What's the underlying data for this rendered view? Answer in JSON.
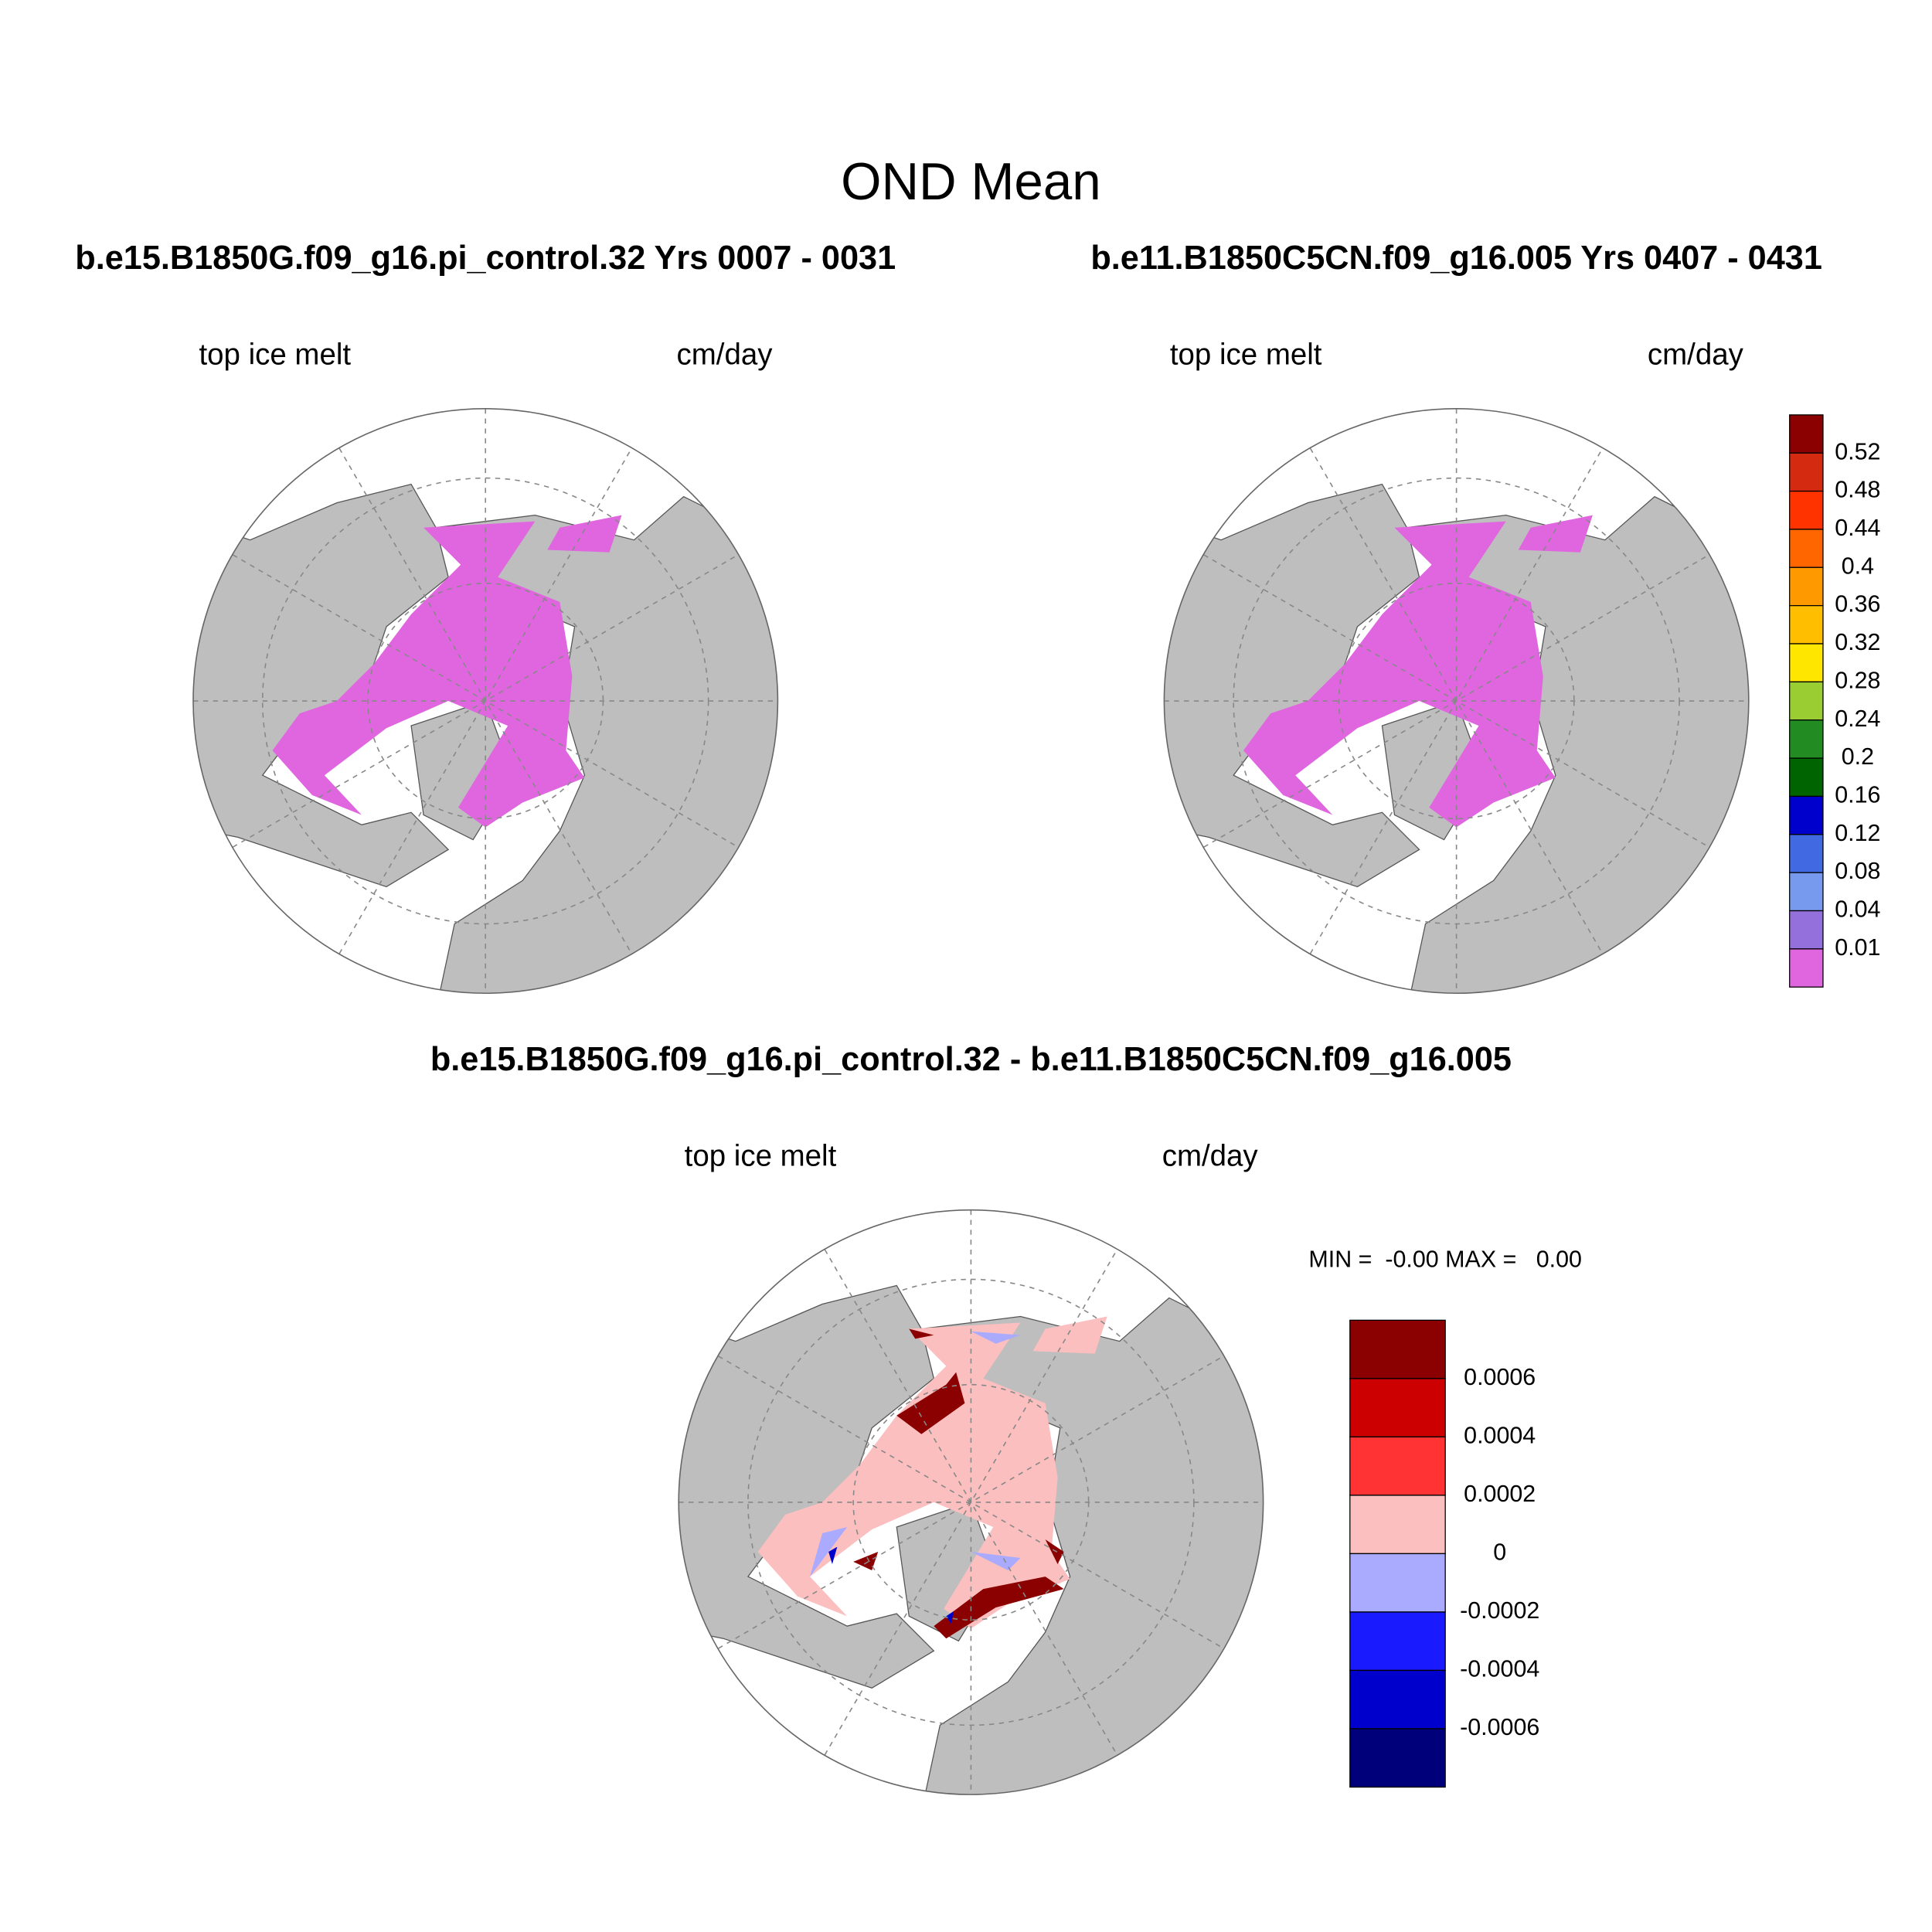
{
  "title": "OND Mean",
  "panels": [
    {
      "title": "b.e15.B1850G.f09_g16.pi_control.32  Yrs 0007 - 0031",
      "label_left": "top ice melt",
      "label_right": "cm/day"
    },
    {
      "title": "b.e11.B1850C5CN.f09_g16.005  Yrs 0407 - 0431",
      "label_left": "top ice melt",
      "label_right": "cm/day"
    },
    {
      "title": "b.e15.B1850G.f09_g16.pi_control.32 - b.e11.B1850C5CN.f09_g16.005",
      "label_left": "top ice melt",
      "label_right": "cm/day",
      "min_max": "MIN =  -0.00 MAX =   0.00"
    }
  ],
  "colorbars": [
    {
      "labels": [
        0.52,
        0.48,
        0.44,
        0.4,
        0.36,
        0.32,
        0.28,
        0.24,
        0.2,
        0.16,
        0.12,
        0.08,
        0.04,
        0.01
      ],
      "colors": [
        "#8b0000",
        "#d42a0f",
        "#ff3300",
        "#ff6600",
        "#ff9900",
        "#ffbf00",
        "#ffe600",
        "#9acd32",
        "#228b22",
        "#006400",
        "#0000cd",
        "#4169e1",
        "#7799ee",
        "#9370db",
        "#e066e0"
      ]
    },
    {
      "labels": [
        0.0006,
        0.0004,
        0.0002,
        0,
        -0.0002,
        -0.0004,
        -0.0006
      ],
      "colors": [
        "#8b0000",
        "#cc0000",
        "#ff3333",
        "#fbbfbf",
        "#aaaaff",
        "#1a1aff",
        "#0000cc",
        "#00007a"
      ]
    }
  ]
}
